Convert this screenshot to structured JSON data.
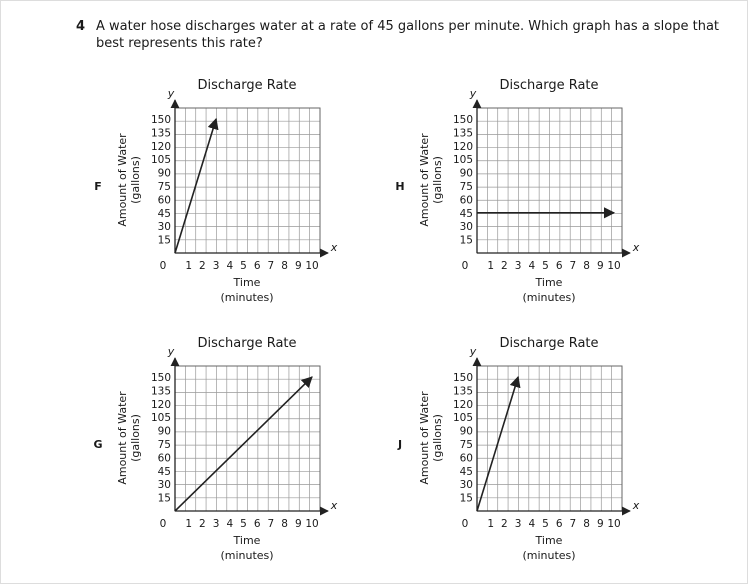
{
  "question": {
    "number": "4",
    "text": "A water hose discharges water at a rate of 45 gallons per minute. Which graph has a slope that best represents this rate?"
  },
  "colors": {
    "grid": "#999999",
    "line": "#222222",
    "frame": "#dddddd"
  },
  "chart_data": [
    {
      "type": "line",
      "option": "F",
      "title": "Discharge Rate",
      "xlabel": "Time",
      "xlabel_unit": "(minutes)",
      "ylabel": "Amount of Water",
      "ylabel_unit": "(gallons)",
      "x_axis_letter": "x",
      "y_axis_letter": "y",
      "origin_label": "0",
      "xlim": [
        0,
        10
      ],
      "ylim": [
        0,
        150
      ],
      "xticks": [
        1,
        2,
        3,
        4,
        5,
        6,
        7,
        8,
        9,
        10
      ],
      "yticks": [
        15,
        30,
        45,
        60,
        75,
        90,
        105,
        120,
        135,
        150
      ],
      "grid": true,
      "series": [
        {
          "x": [
            0,
            3
          ],
          "y": [
            0,
            150
          ],
          "arrow_end": true
        }
      ]
    },
    {
      "type": "line",
      "option": "H",
      "title": "Discharge Rate",
      "xlabel": "Time",
      "xlabel_unit": "(minutes)",
      "ylabel": "Amount of Water",
      "ylabel_unit": "(gallons)",
      "x_axis_letter": "x",
      "y_axis_letter": "y",
      "origin_label": "0",
      "xlim": [
        0,
        10
      ],
      "ylim": [
        0,
        150
      ],
      "xticks": [
        1,
        2,
        3,
        4,
        5,
        6,
        7,
        8,
        9,
        10
      ],
      "yticks": [
        15,
        30,
        45,
        60,
        75,
        90,
        105,
        120,
        135,
        150
      ],
      "grid": true,
      "series": [
        {
          "x": [
            0,
            10
          ],
          "y": [
            45,
            45
          ],
          "arrow_end": true
        }
      ]
    },
    {
      "type": "line",
      "option": "G",
      "title": "Discharge Rate",
      "xlabel": "Time",
      "xlabel_unit": "(minutes)",
      "ylabel": "Amount of Water",
      "ylabel_unit": "(gallons)",
      "x_axis_letter": "x",
      "y_axis_letter": "y",
      "origin_label": "0",
      "xlim": [
        0,
        10
      ],
      "ylim": [
        0,
        150
      ],
      "xticks": [
        1,
        2,
        3,
        4,
        5,
        6,
        7,
        8,
        9,
        10
      ],
      "yticks": [
        15,
        30,
        45,
        60,
        75,
        90,
        105,
        120,
        135,
        150
      ],
      "grid": true,
      "series": [
        {
          "x": [
            0,
            10
          ],
          "y": [
            0,
            150
          ],
          "arrow_end": true
        }
      ]
    },
    {
      "type": "line",
      "option": "J",
      "title": "Discharge Rate",
      "xlabel": "Time",
      "xlabel_unit": "(minutes)",
      "ylabel": "Amount of Water",
      "ylabel_unit": "(gallons)",
      "x_axis_letter": "x",
      "y_axis_letter": "y",
      "origin_label": "0",
      "xlim": [
        0,
        10
      ],
      "ylim": [
        0,
        150
      ],
      "xticks": [
        1,
        2,
        3,
        4,
        5,
        6,
        7,
        8,
        9,
        10
      ],
      "yticks": [
        15,
        30,
        45,
        60,
        75,
        90,
        105,
        120,
        135,
        150
      ],
      "grid": true,
      "series": [
        {
          "x": [
            0,
            3
          ],
          "y": [
            0,
            150
          ],
          "arrow_end": true
        }
      ]
    }
  ]
}
